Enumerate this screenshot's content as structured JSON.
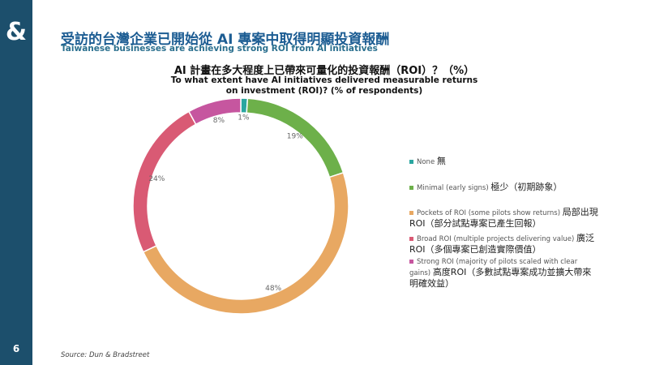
{
  "page": {
    "brand_mark": "&",
    "title": "受訪的台灣企業已開始從 AI 專案中取得明顯投資報酬",
    "subtitle": "Taiwanese businesses are achieving strong ROI from AI initiatives",
    "number": "6",
    "source": "Source: Dun & Bradstreet"
  },
  "chart_data": {
    "type": "donut",
    "title": "AI 計畫在多大程度上已帶來可量化的投資報酬（ROI）？（%）",
    "subtitle": "To what extent have AI initiatives delivered measurable returns on investment (ROI)? (% of respondents)",
    "categories": [
      "None",
      "Minimal (early signs)",
      "Pockets of ROI (some pilots show returns)",
      "Broad ROI (multiple projects delivering value)",
      "Strong ROI (majority of pilots scaled with clear gains)"
    ],
    "categories_zh": [
      "無",
      "極少（初期跡象）",
      "局部出現ROI（部分試點專案已產生回報）",
      "廣泛ROI（多個專案已創造實際價值）",
      "高度ROI（多數試點專案成功並擴大帶來明確效益）"
    ],
    "values": [
      1,
      19,
      48,
      24,
      8
    ],
    "value_labels": [
      "1%",
      "19%",
      "48%",
      "24%",
      "8%"
    ],
    "colors": [
      "#2aa6a0",
      "#6db04a",
      "#e8a862",
      "#d95a74",
      "#c6569f"
    ]
  }
}
